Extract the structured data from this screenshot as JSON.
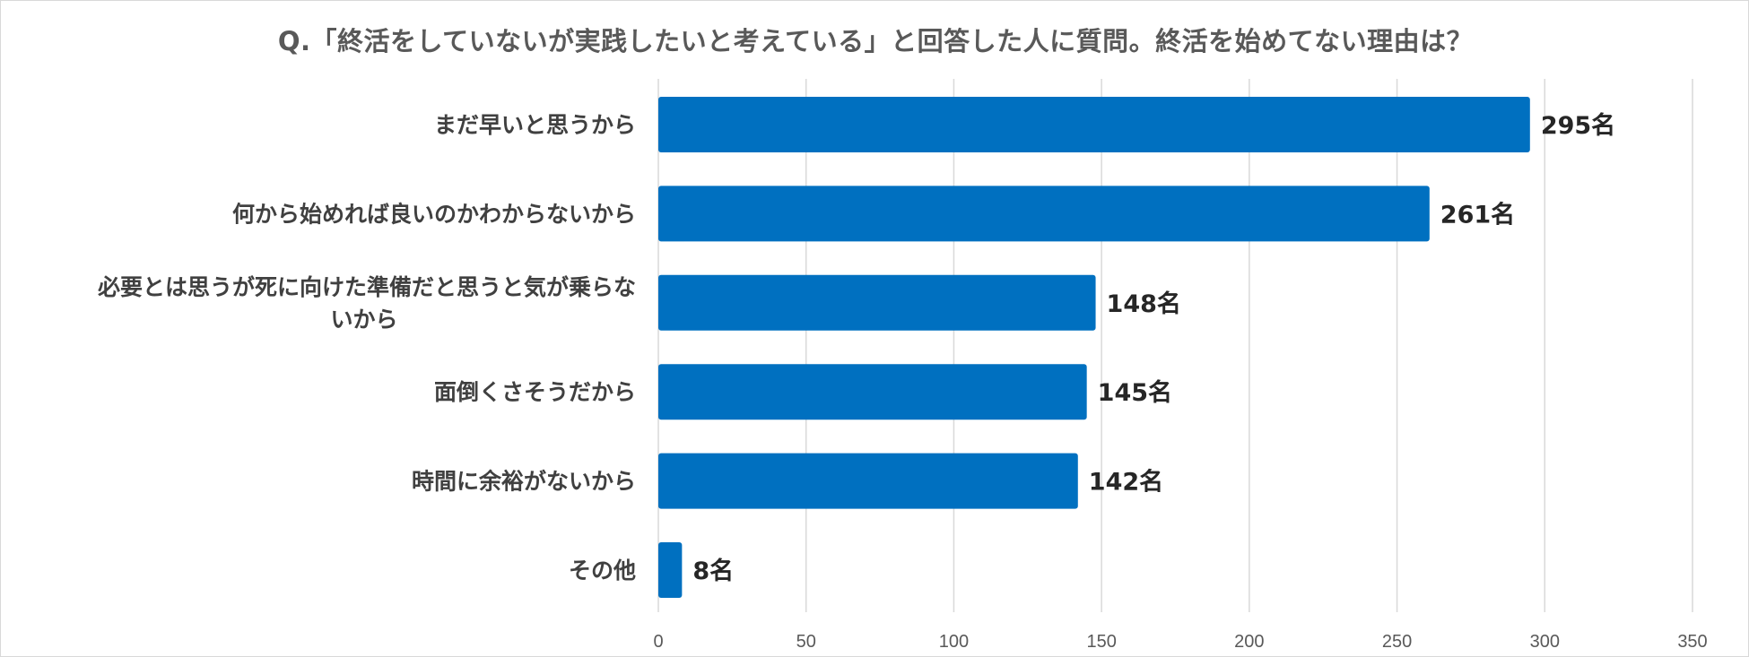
{
  "chart_data": {
    "type": "bar",
    "orientation": "horizontal",
    "title": "Q.「終活をしていないが実践したいと考えている」と回答した人に質問。終活を始めてない理由は？",
    "categories": [
      "まだ早いと思うから",
      "何から始めれば良いのかわからないから",
      "必要とは思うが死に向けた準備だと思うと気が乗らないから",
      "面倒くさそうだから",
      "時間に余裕がないから",
      "その他"
    ],
    "category_lines": [
      [
        "まだ早いと思うから"
      ],
      [
        "何から始めれば良いのかわからないから"
      ],
      [
        "必要とは思うが死に向けた準備だと思うと気が乗らな",
        "いから"
      ],
      [
        "面倒くさそうだから"
      ],
      [
        "時間に余裕がないから"
      ],
      [
        "その他"
      ]
    ],
    "values": [
      295,
      261,
      148,
      145,
      142,
      8
    ],
    "value_labels": [
      "295名",
      "261名",
      "148名",
      "145名",
      "142名",
      "8名"
    ],
    "xlim": [
      0,
      350
    ],
    "xticks": [
      0,
      50,
      100,
      150,
      200,
      250,
      300,
      350
    ],
    "xtick_labels": [
      "0",
      "50",
      "100",
      "150",
      "200",
      "250",
      "300",
      "350"
    ],
    "grid": true,
    "legend": "none",
    "colors": {
      "bar": "#0070c0",
      "grid": "#d9d9d9"
    }
  }
}
